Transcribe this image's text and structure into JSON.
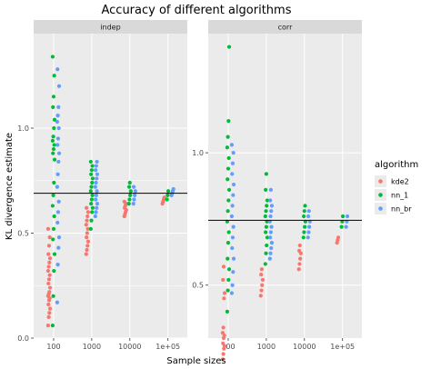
{
  "chart_data": {
    "type": "scatter",
    "title": "Accuracy of different algorithms",
    "xlabel": "Sample sizes",
    "ylabel": "KL divergence estimate",
    "x_scale": "log10",
    "x_categories": [
      100,
      1000,
      10000,
      100000
    ],
    "x_tick_labels": [
      "100",
      "1000",
      "10000",
      "1e+05"
    ],
    "legend": {
      "title": "algorithm",
      "position": "right",
      "entries": [
        {
          "name": "kde2",
          "color": "#F8766D"
        },
        {
          "name": "nn_1",
          "color": "#00BA38"
        },
        {
          "name": "nn_br",
          "color": "#619CFF"
        }
      ]
    },
    "panel_background": "#EBEBEB",
    "strip_background": "#D9D9D9",
    "grid": true,
    "panels": [
      {
        "strip": "indep",
        "ylim": [
          0,
          1.45
        ],
        "y_ticks": [
          0.0,
          0.5,
          1.0
        ],
        "y_tick_labels": [
          "0.0",
          "0.5",
          "1.0"
        ],
        "reference_line": 0.69,
        "series": [
          {
            "name": "kde2",
            "color": "#F8766D",
            "points": [
              {
                "x": 100,
                "ys": [
                  0.06,
                  0.1,
                  0.12,
                  0.14,
                  0.16,
                  0.18,
                  0.19,
                  0.2,
                  0.21,
                  0.22,
                  0.24,
                  0.26,
                  0.28,
                  0.3,
                  0.32,
                  0.34,
                  0.36,
                  0.38,
                  0.4,
                  0.44,
                  0.48,
                  0.52
                ]
              },
              {
                "x": 1000,
                "ys": [
                  0.4,
                  0.42,
                  0.44,
                  0.46,
                  0.48,
                  0.5,
                  0.52,
                  0.54,
                  0.56,
                  0.58,
                  0.6,
                  0.62
                ]
              },
              {
                "x": 10000,
                "ys": [
                  0.58,
                  0.59,
                  0.6,
                  0.61,
                  0.62,
                  0.63,
                  0.64,
                  0.65
                ]
              },
              {
                "x": 100000,
                "ys": [
                  0.64,
                  0.65,
                  0.66,
                  0.67
                ]
              }
            ]
          },
          {
            "name": "nn_1",
            "color": "#00BA38",
            "points": [
              {
                "x": 100,
                "ys": [
                  0.06,
                  0.2,
                  0.32,
                  0.4,
                  0.47,
                  0.52,
                  0.58,
                  0.63,
                  0.68,
                  0.74,
                  0.85,
                  0.88,
                  0.9,
                  0.92,
                  0.94,
                  0.96,
                  1.0,
                  1.04,
                  1.1,
                  1.15,
                  1.25,
                  1.34
                ]
              },
              {
                "x": 1000,
                "ys": [
                  0.52,
                  0.56,
                  0.6,
                  0.62,
                  0.64,
                  0.66,
                  0.68,
                  0.7,
                  0.72,
                  0.74,
                  0.76,
                  0.78,
                  0.8,
                  0.82,
                  0.84
                ]
              },
              {
                "x": 10000,
                "ys": [
                  0.64,
                  0.66,
                  0.68,
                  0.7,
                  0.72,
                  0.74
                ]
              },
              {
                "x": 100000,
                "ys": [
                  0.66,
                  0.68,
                  0.7
                ]
              }
            ]
          },
          {
            "name": "nn_br",
            "color": "#619CFF",
            "points": [
              {
                "x": 100,
                "ys": [
                  0.17,
                  0.35,
                  0.43,
                  0.48,
                  0.55,
                  0.6,
                  0.65,
                  0.72,
                  0.78,
                  0.84,
                  0.88,
                  0.92,
                  0.95,
                  1.0,
                  1.03,
                  1.06,
                  1.1,
                  1.2,
                  1.28
                ]
              },
              {
                "x": 1000,
                "ys": [
                  0.58,
                  0.6,
                  0.62,
                  0.64,
                  0.66,
                  0.68,
                  0.7,
                  0.72,
                  0.74,
                  0.76,
                  0.78,
                  0.8,
                  0.82,
                  0.84
                ]
              },
              {
                "x": 10000,
                "ys": [
                  0.64,
                  0.66,
                  0.68,
                  0.7,
                  0.72
                ]
              },
              {
                "x": 100000,
                "ys": [
                  0.68,
                  0.69,
                  0.7,
                  0.71
                ]
              }
            ]
          }
        ]
      },
      {
        "strip": "corr",
        "ylim": [
          0.3,
          1.45
        ],
        "y_ticks": [
          0.5,
          1.0
        ],
        "y_tick_labels": [
          "0.5",
          "1.0"
        ],
        "reference_line": 0.745,
        "series": [
          {
            "name": "kde2",
            "color": "#F8766D",
            "points": [
              {
                "x": 100,
                "ys": [
                  0.22,
                  0.24,
                  0.26,
                  0.27,
                  0.28,
                  0.3,
                  0.31,
                  0.32,
                  0.34,
                  0.45,
                  0.47,
                  0.52,
                  0.57
                ]
              },
              {
                "x": 1000,
                "ys": [
                  0.46,
                  0.48,
                  0.5,
                  0.52,
                  0.54,
                  0.56
                ]
              },
              {
                "x": 10000,
                "ys": [
                  0.56,
                  0.58,
                  0.6,
                  0.62,
                  0.63,
                  0.65
                ]
              },
              {
                "x": 100000,
                "ys": [
                  0.66,
                  0.67,
                  0.68
                ]
              }
            ]
          },
          {
            "name": "nn_1",
            "color": "#00BA38",
            "points": [
              {
                "x": 100,
                "ys": [
                  0.4,
                  0.48,
                  0.52,
                  0.56,
                  0.6,
                  0.66,
                  0.7,
                  0.74,
                  0.78,
                  0.82,
                  0.86,
                  0.9,
                  0.94,
                  0.98,
                  1.02,
                  1.06,
                  1.12,
                  1.4
                ]
              },
              {
                "x": 1000,
                "ys": [
                  0.58,
                  0.62,
                  0.65,
                  0.68,
                  0.7,
                  0.72,
                  0.74,
                  0.76,
                  0.78,
                  0.8,
                  0.82,
                  0.86,
                  0.92
                ]
              },
              {
                "x": 10000,
                "ys": [
                  0.68,
                  0.7,
                  0.72,
                  0.74,
                  0.76,
                  0.78,
                  0.8
                ]
              },
              {
                "x": 100000,
                "ys": [
                  0.72,
                  0.74,
                  0.76
                ]
              }
            ]
          },
          {
            "name": "nn_br",
            "color": "#619CFF",
            "points": [
              {
                "x": 100,
                "ys": [
                  0.47,
                  0.5,
                  0.55,
                  0.6,
                  0.64,
                  0.68,
                  0.72,
                  0.76,
                  0.8,
                  0.84,
                  0.88,
                  0.92,
                  0.96,
                  1.0,
                  1.03
                ]
              },
              {
                "x": 1000,
                "ys": [
                  0.6,
                  0.62,
                  0.64,
                  0.66,
                  0.68,
                  0.7,
                  0.72,
                  0.74,
                  0.76,
                  0.78,
                  0.8,
                  0.82,
                  0.86
                ]
              },
              {
                "x": 10000,
                "ys": [
                  0.68,
                  0.7,
                  0.72,
                  0.74,
                  0.76,
                  0.78
                ]
              },
              {
                "x": 100000,
                "ys": [
                  0.72,
                  0.74,
                  0.76
                ]
              }
            ]
          }
        ]
      }
    ]
  }
}
